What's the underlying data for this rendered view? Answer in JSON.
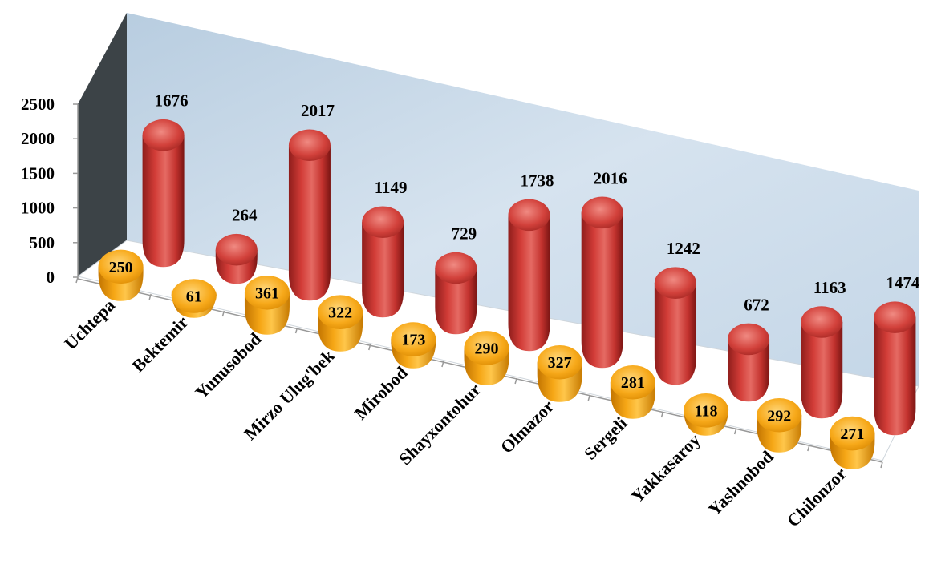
{
  "chart_data": {
    "type": "bar",
    "title": "",
    "xlabel": "",
    "ylabel": "",
    "ylim": [
      0,
      2500
    ],
    "yticks": [
      "0",
      "500",
      "1000",
      "1500",
      "2000",
      "2500"
    ],
    "categories": [
      "Uchtepa",
      "Bektemir",
      "Yunusobod",
      "Mirzo Ulug'bek",
      "Mirobod",
      "Shayxontohur",
      "Olmazor",
      "Sergeli",
      "Yakkasaroy",
      "Yashnobod",
      "Chilonzor"
    ],
    "series": [
      {
        "values": [
          250,
          61,
          361,
          322,
          173,
          290,
          327,
          281,
          118,
          292,
          271
        ],
        "color": "#f5a30a",
        "row": "front"
      },
      {
        "values": [
          1676,
          264,
          2017,
          1149,
          729,
          1738,
          2016,
          1242,
          672,
          1163,
          1474
        ],
        "color": "#c0302d",
        "row": "back"
      }
    ],
    "legend": "none",
    "grid": false,
    "style": "3d-cylinder",
    "wall_color": "#c9d9e8",
    "side_wall_color": "#3d4448"
  }
}
